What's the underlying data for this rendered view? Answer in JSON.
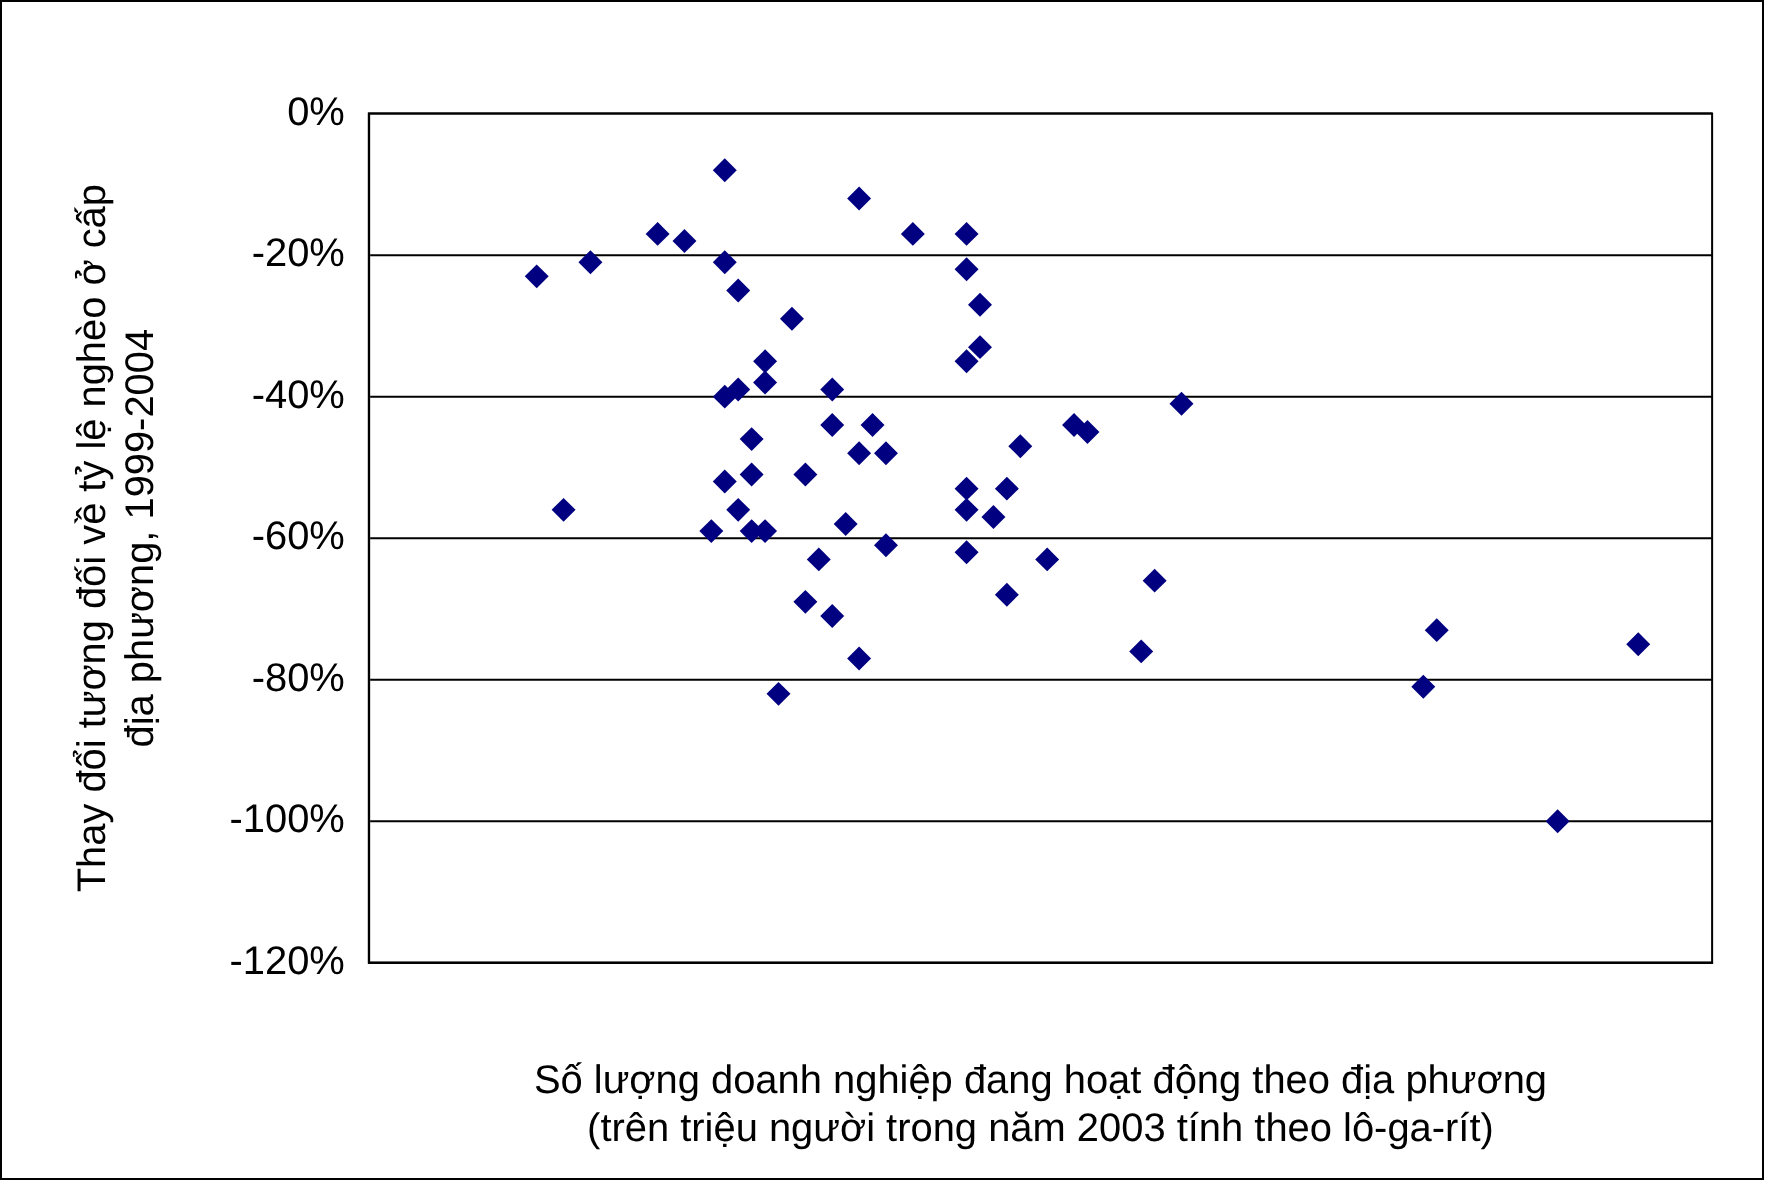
{
  "chart_data": {
    "type": "scatter",
    "ylabel": "Thay đổi tương đối về tỷ lệ nghèo ở cấp\nđịa phương, 1999-2004",
    "xlabel": "Số lượng doanh nghiệp đang hoạt động theo địa phương\n(trên triệu người trong năm 2003 tính theo lô-ga-rít)",
    "categories": [
      null,
      null,
      null,
      null,
      null,
      null,
      null,
      null,
      null,
      null,
      null,
      null,
      null,
      null,
      null,
      null,
      null,
      null,
      null,
      null,
      null,
      null,
      null,
      null,
      null,
      null,
      null,
      null,
      null,
      null,
      null,
      null,
      null,
      null,
      null,
      null,
      null,
      null,
      null,
      null,
      null,
      null,
      null,
      null,
      null,
      null,
      null,
      null,
      null,
      null,
      null,
      null,
      null,
      null,
      null,
      null,
      null,
      null,
      null,
      null,
      null,
      null,
      null,
      null,
      null,
      null,
      null,
      null,
      null,
      null,
      null,
      null,
      null,
      null,
      null,
      null,
      null,
      null,
      null,
      null,
      null,
      null,
      null,
      null,
      null,
      null,
      null,
      null,
      null,
      null,
      null,
      null,
      null,
      null,
      null,
      null,
      null,
      null,
      null,
      null
    ],
    "ylim": [
      -120,
      0
    ],
    "yticks": [
      {
        "value": -120,
        "label": "-120%"
      },
      {
        "value": -100,
        "label": "-100%"
      },
      {
        "value": -80,
        "label": "-80%"
      },
      {
        "value": -60,
        "label": "-60%"
      },
      {
        "value": -40,
        "label": "-40%"
      },
      {
        "value": -20,
        "label": "-20%"
      },
      {
        "value": 0,
        "label": "0%"
      }
    ],
    "tick_labels": "y",
    "grid": "y",
    "legend": false,
    "marker": "diamond",
    "series": [
      {
        "color": "#000080",
        "values": [
          null,
          null,
          null,
          null,
          null,
          null,
          null,
          null,
          null,
          null,
          null,
          null,
          -23,
          null,
          -56,
          null,
          -21,
          null,
          null,
          null,
          null,
          -17,
          null,
          -18,
          null,
          -59,
          -8,
          -25,
          -46,
          -35,
          -82,
          -29,
          -51,
          -63,
          -39,
          -58,
          -48,
          -44,
          -48,
          null,
          -17,
          null,
          null,
          null,
          -17,
          -27,
          -57,
          -53,
          -47,
          null,
          -63,
          null,
          -44,
          -45,
          null,
          null,
          null,
          -76,
          -66,
          null,
          -41,
          null,
          null,
          null,
          null,
          null,
          null,
          null,
          null,
          null,
          null,
          null,
          null,
          null,
          null,
          null,
          null,
          null,
          -81,
          -73,
          null,
          null,
          null,
          null,
          null,
          null,
          null,
          null,
          -100,
          null,
          null,
          null,
          null,
          null,
          -75,
          null,
          null,
          null,
          null,
          null
        ]
      },
      {
        "color": "#000080",
        "values": [
          null,
          null,
          null,
          null,
          null,
          null,
          null,
          null,
          null,
          null,
          null,
          null,
          null,
          null,
          null,
          null,
          null,
          null,
          null,
          null,
          null,
          null,
          null,
          null,
          null,
          null,
          -21,
          -39,
          -51,
          -38,
          null,
          null,
          -69,
          null,
          -44,
          null,
          -77,
          null,
          -61,
          null,
          null,
          null,
          null,
          null,
          -22,
          -33,
          null,
          -68,
          null,
          null,
          null,
          null,
          null,
          null,
          null,
          null,
          null,
          null,
          null,
          null,
          null,
          null,
          null,
          null,
          null,
          null,
          null,
          null,
          null,
          null,
          null,
          null,
          null,
          null,
          null,
          null,
          null,
          null,
          null,
          null,
          null,
          null,
          null,
          null,
          null,
          null,
          null,
          null,
          null,
          null,
          null,
          null,
          null,
          null,
          null,
          null,
          null,
          null,
          null,
          null
        ]
      },
      {
        "color": "#000080",
        "values": [
          null,
          null,
          null,
          null,
          null,
          null,
          null,
          null,
          null,
          null,
          null,
          null,
          null,
          null,
          null,
          null,
          null,
          null,
          null,
          null,
          null,
          null,
          null,
          null,
          null,
          null,
          -40,
          -56,
          -59,
          -59,
          null,
          null,
          null,
          null,
          -71,
          null,
          -12,
          null,
          null,
          null,
          null,
          null,
          null,
          null,
          -35,
          null,
          null,
          null,
          null,
          null,
          null,
          null,
          null,
          null,
          null,
          null,
          null,
          null,
          null,
          null,
          null,
          null,
          null,
          null,
          null,
          null,
          null,
          null,
          null,
          null,
          null,
          null,
          null,
          null,
          null,
          null,
          null,
          null,
          null,
          null,
          null,
          null,
          null,
          null,
          null,
          null,
          null,
          null,
          null,
          null,
          null,
          null,
          null,
          null,
          null,
          null,
          null,
          null,
          null,
          null
        ]
      },
      {
        "color": "#000080",
        "values": [
          null,
          null,
          null,
          null,
          null,
          null,
          null,
          null,
          null,
          null,
          null,
          null,
          null,
          null,
          null,
          null,
          null,
          null,
          null,
          null,
          null,
          null,
          null,
          null,
          null,
          null,
          -52,
          null,
          null,
          null,
          null,
          null,
          null,
          null,
          null,
          null,
          null,
          null,
          null,
          null,
          null,
          null,
          null,
          null,
          -53,
          null,
          null,
          null,
          null,
          null,
          null,
          null,
          null,
          null,
          null,
          null,
          null,
          null,
          null,
          null,
          null,
          null,
          null,
          null,
          null,
          null,
          null,
          null,
          null,
          null,
          null,
          null,
          null,
          null,
          null,
          null,
          null,
          null,
          null,
          null,
          null,
          null,
          null,
          null,
          null,
          null,
          null,
          null,
          null,
          null,
          null,
          null,
          null,
          null,
          null,
          null,
          null,
          null,
          null,
          null
        ]
      },
      {
        "color": "#000080",
        "values": [
          null,
          null,
          null,
          null,
          null,
          null,
          null,
          null,
          null,
          null,
          null,
          null,
          null,
          null,
          null,
          null,
          null,
          null,
          null,
          null,
          null,
          null,
          null,
          null,
          null,
          null,
          null,
          null,
          null,
          null,
          null,
          null,
          null,
          null,
          null,
          null,
          null,
          null,
          null,
          null,
          null,
          null,
          null,
          null,
          -56,
          null,
          null,
          null,
          null,
          null,
          null,
          null,
          null,
          null,
          null,
          null,
          null,
          null,
          null,
          null,
          null,
          null,
          null,
          null,
          null,
          null,
          null,
          null,
          null,
          null,
          null,
          null,
          null,
          null,
          null,
          null,
          null,
          null,
          null,
          null,
          null,
          null,
          null,
          null,
          null,
          null,
          null,
          null,
          null,
          null,
          null,
          null,
          null,
          null,
          null,
          null,
          null,
          null,
          null,
          null
        ]
      },
      {
        "color": "#000080",
        "values": [
          null,
          null,
          null,
          null,
          null,
          null,
          null,
          null,
          null,
          null,
          null,
          null,
          null,
          null,
          null,
          null,
          null,
          null,
          null,
          null,
          null,
          null,
          null,
          null,
          null,
          null,
          null,
          null,
          null,
          null,
          null,
          null,
          null,
          null,
          null,
          null,
          null,
          null,
          null,
          null,
          null,
          null,
          null,
          null,
          -62,
          null,
          null,
          null,
          null,
          null,
          null,
          null,
          null,
          null,
          null,
          null,
          null,
          null,
          null,
          null,
          null,
          null,
          null,
          null,
          null,
          null,
          null,
          null,
          null,
          null,
          null,
          null,
          null,
          null,
          null,
          null,
          null,
          null,
          null,
          null,
          null,
          null,
          null,
          null,
          null,
          null,
          null,
          null,
          null,
          null,
          null,
          null,
          null,
          null,
          null,
          null,
          null,
          null,
          null,
          null
        ]
      }
    ]
  }
}
